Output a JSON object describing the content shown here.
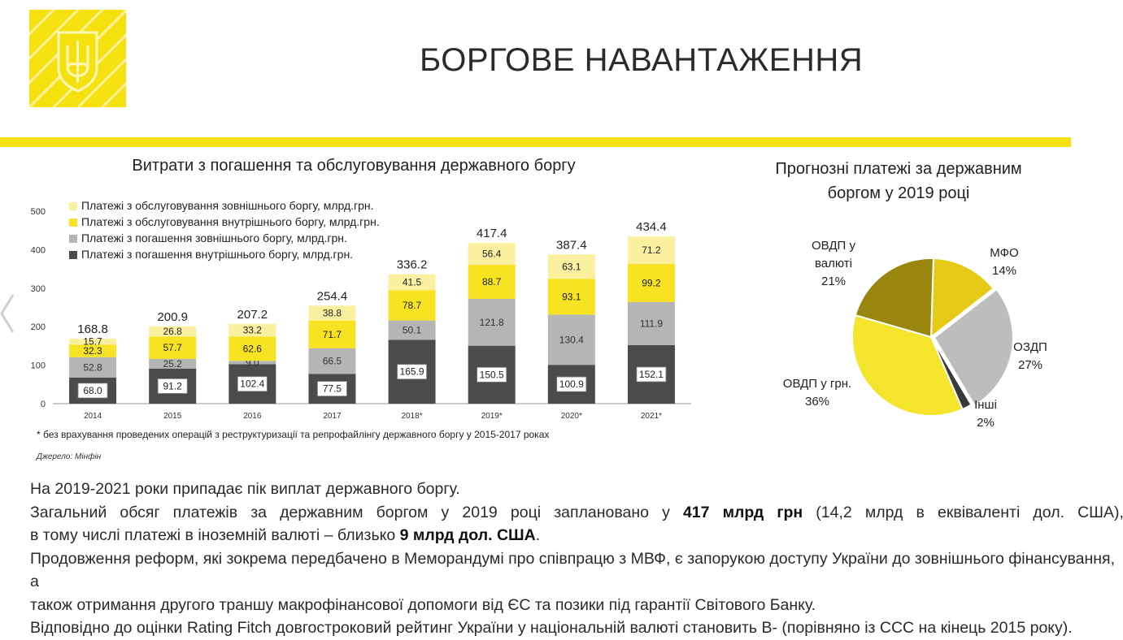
{
  "header": {
    "title": "БОРГОВЕ НАВАНТАЖЕННЯ"
  },
  "colors": {
    "brand_yellow": "#f5e010",
    "dark_gray": "#4b4b4b",
    "light_gray": "#b5b5b5",
    "yellow": "#f7e321",
    "pale_yellow": "#faf0a0",
    "olive": "#9a860e"
  },
  "chart_data": [
    {
      "type": "bar",
      "stacked": true,
      "title": "Витрати з погашення та обслуговування державного боргу",
      "categories": [
        "2014",
        "2015",
        "2016",
        "2017",
        "2018*",
        "2019*",
        "2020*",
        "2021*"
      ],
      "ylim": [
        0,
        500
      ],
      "yticks": [
        "0",
        "100",
        "200",
        "300",
        "400",
        "500"
      ],
      "series": [
        {
          "name": "Платежі з погашення  внутрішнього боргу, млрд.грн.",
          "color": "#4b4b4b",
          "values": [
            68.0,
            91.2,
            102.4,
            77.5,
            165.9,
            150.5,
            100.9,
            152.1
          ],
          "labels": [
            "68.0",
            "91.2",
            "102.4",
            "77.5",
            "165.9",
            "150.5",
            "100.9",
            "152.1"
          ]
        },
        {
          "name": "Платежі з погашення  зовнішнього боргу, млрд.грн.",
          "color": "#b5b5b5",
          "values": [
            52.8,
            25.2,
            9.0,
            66.5,
            50.1,
            121.8,
            130.4,
            111.9
          ],
          "labels": [
            "52.8",
            "25.2",
            "9.0",
            "66.5",
            "50.1",
            "121.8",
            "130.4",
            "111.9"
          ]
        },
        {
          "name": "Платежі з обслуговування внутрішнього боргу, млрд.грн.",
          "color": "#f7e321",
          "values": [
            32.3,
            57.7,
            62.6,
            71.7,
            78.7,
            88.7,
            93.1,
            99.2
          ],
          "labels": [
            "32.3",
            "57.7",
            "62.6",
            "71.7",
            "78.7",
            "88.7",
            "93.1",
            "99.2"
          ]
        },
        {
          "name": "Платежі з обслуговування зовнішнього боргу, млрд.грн.",
          "color": "#faf0a0",
          "values": [
            15.7,
            26.8,
            33.2,
            38.8,
            41.5,
            56.4,
            63.1,
            71.2
          ],
          "labels": [
            "15.7",
            "26.8",
            "33.2",
            "38.8",
            "41.5",
            "56.4",
            "63.1",
            "71.2"
          ]
        }
      ],
      "totals": [
        "168.8",
        "200.9",
        "207.2",
        "254.4",
        "336.2",
        "417.4",
        "387.4",
        "434.4"
      ],
      "legend_position": "top-left"
    },
    {
      "type": "pie",
      "title": "Прогнозні платежі за державним боргом у 2019 році",
      "slices": [
        {
          "label": "МФО",
          "value": 14,
          "pct": "14%",
          "color": "#e5cb18"
        },
        {
          "label": "ОЗДП",
          "value": 27,
          "pct": "27%",
          "color": "#bdbdbd"
        },
        {
          "label": "Інші",
          "value": 2,
          "pct": "2%",
          "color": "#3a3a3a"
        },
        {
          "label": "ОВДП у грн.",
          "value": 36,
          "pct": "36%",
          "color": "#f4e42c"
        },
        {
          "label": "ОВДП у валюті",
          "value": 21,
          "pct": "21%",
          "color": "#9a860e"
        }
      ]
    }
  ],
  "notes": {
    "footnote": "* без врахування проведених операцій з реструктуризації та репрофайлінгу державного боргу у 2015-2017 роках",
    "source": "Джерело: Мінфін"
  },
  "text": {
    "p1": "На 2019-2021 роки припадає пік виплат державного боргу.",
    "p2_a": "Загальний обсяг платежів за державним боргом у 2019 році заплановано у ",
    "p2_b": "417 млрд грн",
    "p2_c": " (14,2 млрд в еквіваленті дол. США),",
    "p2_d": "в тому числі платежі в іноземній валюті – близько ",
    "p2_e": "9 млрд дол. США",
    "p2_f": ".",
    "p3_a": "Продовження реформ, які зокрема передбачено в Меморандумі про співпрацю з МВФ, є запорукою доступу України до зовнішнього фінансування, а",
    "p3_b": "також отримання другого траншу макрофінансової допомоги від ЄС та позики під гарантії Світового Банку.",
    "p4_a": "Відповідно до оцінки ",
    "p4_b": "Rating Fitch",
    "p4_c": " довгостроковий рейтинг України у національній валюті становить B- (порівняно із ССС на кінець 2015 року)."
  }
}
